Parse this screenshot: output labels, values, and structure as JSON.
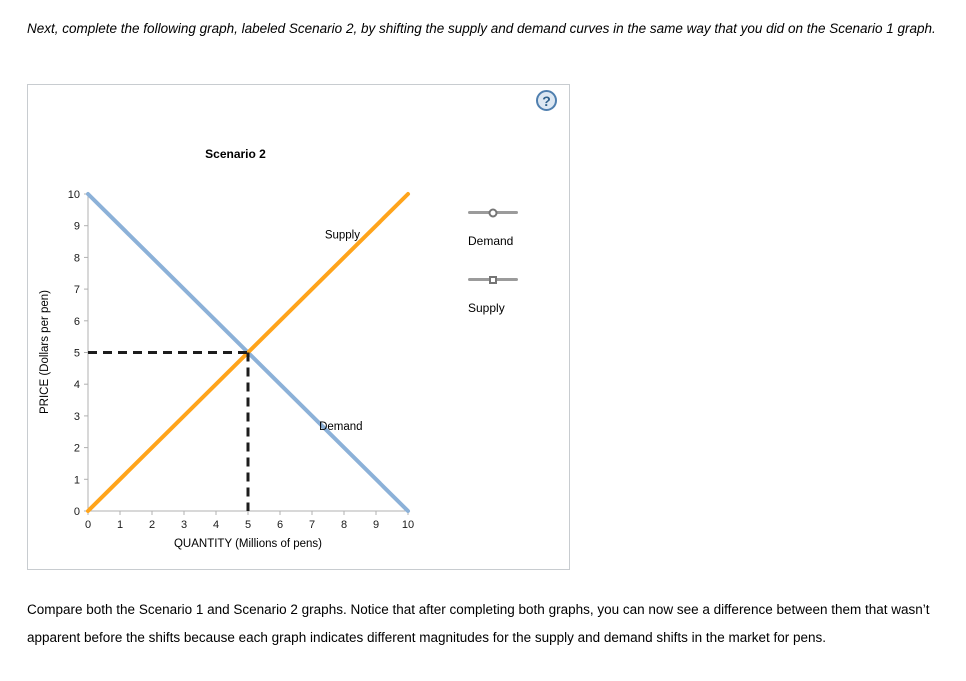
{
  "instruction": "Next, complete the following graph, labeled Scenario 2, by shifting the supply and demand curves in the same way that you did on the Scenario 1 graph.",
  "closing": "Compare both the Scenario 1 and Scenario 2 graphs. Notice that after completing both graphs, you can now see a difference between them that wasn’t apparent before the shifts because each graph indicates different magnitudes for the supply and demand shifts in the market for pens.",
  "panel": {
    "help_label": "?"
  },
  "legend": {
    "items": [
      {
        "label": "Demand",
        "marker": "circle"
      },
      {
        "label": "Supply",
        "marker": "square"
      }
    ]
  },
  "chart_data": {
    "type": "line",
    "title": "Scenario 2",
    "xlabel": "QUANTITY (Millions of pens)",
    "ylabel": "PRICE (Dollars per pen)",
    "xlim": [
      0,
      10
    ],
    "ylim": [
      0,
      10
    ],
    "xticks": [
      0,
      1,
      2,
      3,
      4,
      5,
      6,
      7,
      8,
      9,
      10
    ],
    "yticks": [
      0,
      1,
      2,
      3,
      4,
      5,
      6,
      7,
      8,
      9,
      10
    ],
    "grid": false,
    "legend_position": "right",
    "series": [
      {
        "name": "Demand",
        "color": "#8cb1d8",
        "points": [
          [
            0,
            10
          ],
          [
            10,
            0
          ]
        ],
        "label_pos": [
          7.9,
          2.55
        ]
      },
      {
        "name": "Supply",
        "color": "#ffa41b",
        "points": [
          [
            0,
            0
          ],
          [
            10,
            10
          ]
        ],
        "label_pos": [
          7.95,
          8.6
        ]
      }
    ],
    "dashed_guides": [
      {
        "name": "equilibrium-price-guide",
        "points": [
          [
            0,
            5
          ],
          [
            5,
            5
          ]
        ]
      },
      {
        "name": "equilibrium-quantity-guide",
        "points": [
          [
            5,
            5
          ],
          [
            5,
            0
          ]
        ]
      }
    ],
    "equilibrium": {
      "quantity": 5,
      "price": 5
    },
    "colors": {
      "dashed": "#1c1c1c",
      "axis": "#b0b0b0"
    }
  }
}
